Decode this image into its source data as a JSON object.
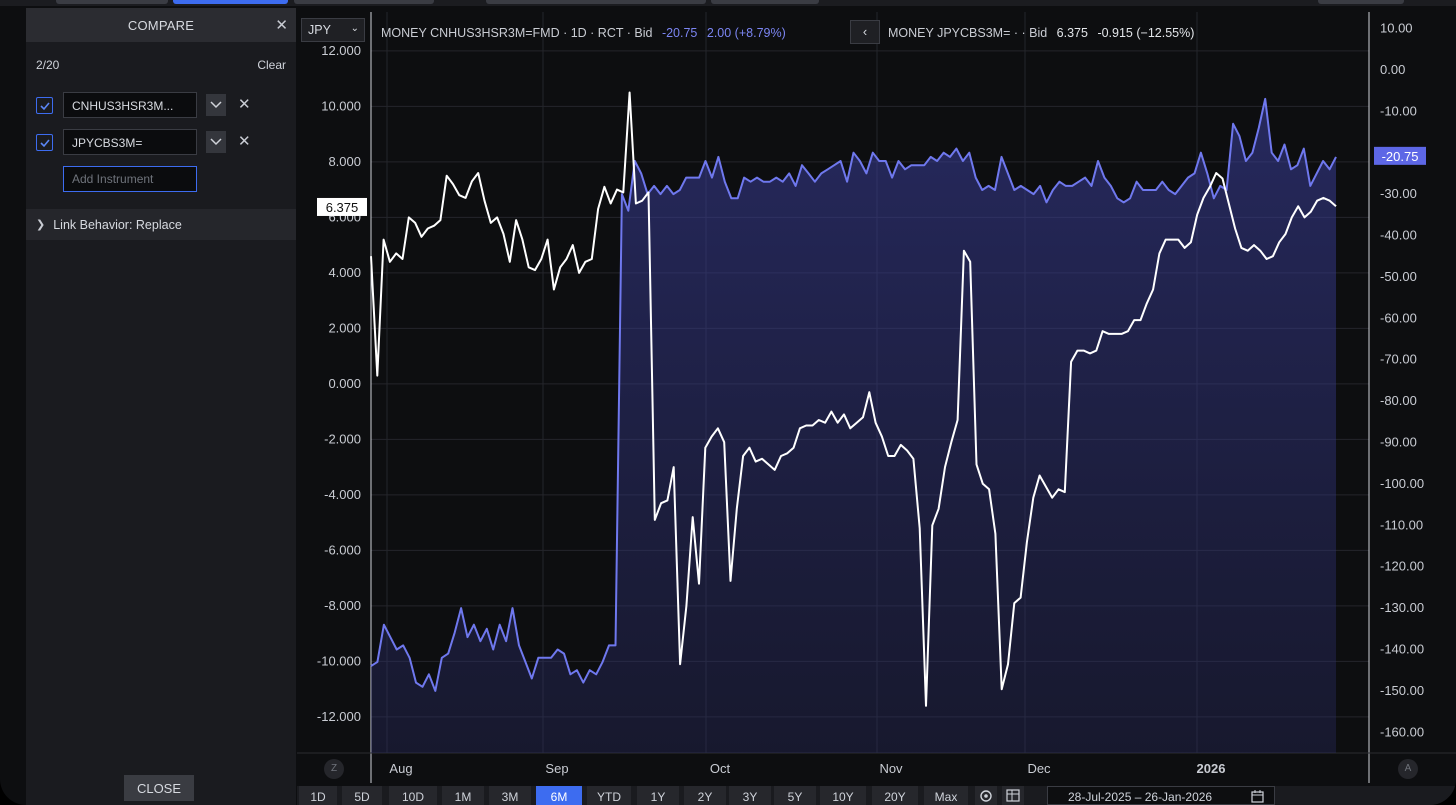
{
  "compare": {
    "title": "COMPARE",
    "count": "2/20",
    "clear_label": "Clear",
    "instruments": [
      {
        "name": "CNHUS3HSR3M...",
        "checked": true
      },
      {
        "name": "JPYCBS3M=",
        "checked": true
      }
    ],
    "add_placeholder": "Add Instrument",
    "link_behavior": "Link Behavior: Replace",
    "close_label": "CLOSE"
  },
  "chart": {
    "currency": "JPY",
    "legend1": {
      "label": "MONEY CNHUS3HSR3M=FMD · 1D · RCT · Bid",
      "value": "-20.75",
      "change": "2.00 (+8.79%)"
    },
    "legend2": {
      "label": "MONEY JPYCBS3M= · · Bid",
      "value": "6.375",
      "change": "-0.915 (−12.55%)"
    },
    "colors": {
      "series1": "#6f78ee",
      "series2": "#ffffff",
      "background": "#0d0e10",
      "grid": "#24262b"
    }
  },
  "chart_data": {
    "type": "line",
    "x_labels": [
      "Aug",
      "Sep",
      "Oct",
      "Nov",
      "Dec",
      "2026"
    ],
    "left_axis": {
      "ticks": [
        "12.000",
        "10.000",
        "8.000",
        "6.000",
        "4.000",
        "2.000",
        "0.000",
        "-2.000",
        "-4.000",
        "-6.000",
        "-8.000",
        "-10.000",
        "-12.000"
      ],
      "range": [
        -13.3,
        13.4
      ],
      "last_value_label": "6.375"
    },
    "right_axis": {
      "ticks": [
        "10.00",
        "0.00",
        "-10.00",
        "-20.00",
        "-30.00",
        "-40.00",
        "-50.00",
        "-60.00",
        "-70.00",
        "-80.00",
        "-90.00",
        "-100.00",
        "-110.00",
        "-120.00",
        "-130.00",
        "-140.00",
        "-150.00",
        "-160.00"
      ],
      "range": [
        -165,
        14
      ],
      "last_value_label": "-20.75"
    },
    "series": [
      {
        "name": "CNHUS3HSR3M=",
        "axis": "right",
        "values": [
          -144,
          -143,
          -134,
          -137,
          -140,
          -139,
          -142,
          -148,
          -149,
          -146,
          -150,
          -142,
          -141,
          -136,
          -130,
          -137,
          -134,
          -138,
          -135,
          -140,
          -134,
          -138,
          -130,
          -139,
          -143,
          -147,
          -142,
          -142,
          -142,
          -140,
          -141,
          -146,
          -145,
          -148,
          -145,
          -146,
          -143,
          -139,
          -139,
          -30,
          -34,
          -22,
          -25,
          -30,
          -28,
          -30,
          -28,
          -30,
          -29,
          -26,
          -26,
          -26,
          -22,
          -26,
          -21,
          -27,
          -31,
          -31,
          -26,
          -27,
          -26,
          -27,
          -27,
          -26,
          -27,
          -25,
          -28,
          -23,
          -25,
          -27,
          -25,
          -24,
          -23,
          -22,
          -27,
          -20,
          -22,
          -25,
          -20,
          -22,
          -22,
          -26,
          -22,
          -24,
          -23,
          -23,
          -23,
          -21,
          -22,
          -20,
          -21,
          -19,
          -22,
          -20,
          -26,
          -29,
          -28,
          -29,
          -21,
          -25,
          -29,
          -28,
          -29,
          -30,
          -28,
          -32,
          -29,
          -27,
          -28,
          -28,
          -27,
          -26,
          -28,
          -22,
          -26,
          -28,
          -31,
          -32,
          -31,
          -27,
          -29,
          -29,
          -29,
          -27,
          -29,
          -30,
          -28,
          -26,
          -25,
          -20,
          -25,
          -31,
          -28,
          -29,
          -13,
          -16,
          -22,
          -20,
          -14,
          -7,
          -20,
          -22,
          -18,
          -24,
          -23,
          -19,
          -28,
          -25,
          -22,
          -24,
          -21
        ]
      },
      {
        "name": "JPYCBS3M=",
        "axis": "left",
        "values": [
          4.6,
          0.3,
          5.2,
          4.4,
          4.7,
          4.5,
          6.0,
          5.8,
          5.3,
          5.6,
          5.7,
          5.9,
          7.5,
          7.2,
          6.8,
          6.7,
          7.3,
          7.6,
          6.6,
          5.8,
          6.0,
          5.4,
          4.4,
          5.9,
          5.2,
          4.2,
          4.1,
          4.5,
          5.2,
          3.4,
          4.2,
          4.5,
          5.0,
          4.0,
          4.4,
          4.5,
          6.3,
          7.1,
          6.5,
          7.0,
          6.9,
          10.5,
          6.5,
          6.6,
          6.9,
          -4.9,
          -4.3,
          -4.2,
          -3.0,
          -10.1,
          -8.0,
          -4.8,
          -7.2,
          -2.3,
          -1.9,
          -1.6,
          -2.1,
          -7.1,
          -4.5,
          -2.6,
          -2.3,
          -2.8,
          -2.7,
          -2.9,
          -3.1,
          -2.6,
          -2.5,
          -2.3,
          -1.6,
          -1.5,
          -1.5,
          -1.3,
          -1.4,
          -1.0,
          -1.4,
          -1.1,
          -1.6,
          -1.4,
          -1.2,
          -0.3,
          -1.4,
          -1.9,
          -2.6,
          -2.6,
          -2.2,
          -2.4,
          -2.7,
          -5.2,
          -11.6,
          -5.1,
          -4.5,
          -3.0,
          -2.1,
          -1.3,
          4.8,
          4.4,
          -2.9,
          -3.6,
          -3.8,
          -5.4,
          -11.0,
          -10.1,
          -7.9,
          -7.7,
          -5.7,
          -4.1,
          -3.3,
          -3.7,
          -4.1,
          -3.8,
          -3.9,
          0.8,
          1.2,
          1.2,
          1.1,
          1.2,
          1.9,
          1.8,
          1.8,
          1.8,
          1.9,
          2.3,
          2.3,
          2.9,
          3.4,
          4.7,
          5.2,
          5.2,
          5.2,
          4.9,
          5.1,
          6.1,
          6.7,
          7.1,
          7.6,
          7.4,
          6.5,
          5.6,
          4.9,
          4.8,
          5.0,
          4.8,
          4.5,
          4.6,
          5.1,
          5.4,
          6.0,
          6.4,
          6.0,
          6.2,
          6.6,
          6.7,
          6.6,
          6.4
        ]
      }
    ],
    "legend": "none",
    "grid": true
  },
  "range_bar": {
    "buttons": [
      "1D",
      "5D",
      "10D",
      "1M",
      "3M",
      "6M",
      "YTD",
      "1Y",
      "2Y",
      "3Y",
      "5Y",
      "10Y",
      "20Y",
      "Max"
    ],
    "active": "6M",
    "date_range": "28-Jul-2025  –  26-Jan-2026"
  },
  "zoom": {
    "left": "Z",
    "right": "A"
  }
}
